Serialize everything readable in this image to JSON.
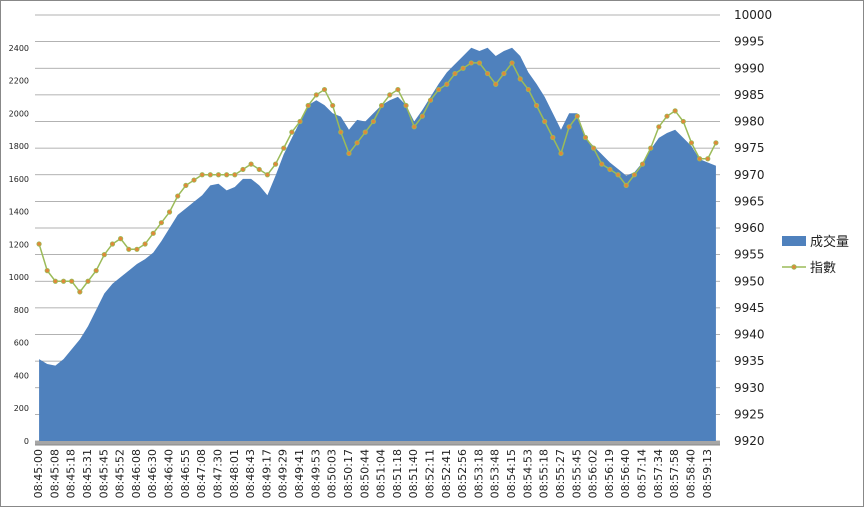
{
  "chart_data": {
    "type": "area-line",
    "grid": true,
    "legend": "right",
    "categories": [
      "08:45:00",
      null,
      "08:45:08",
      null,
      "08:45:18",
      null,
      "08:45:31",
      null,
      "08:45:45",
      null,
      "08:45:52",
      null,
      "08:46:08",
      null,
      "08:46:30",
      null,
      "08:46:40",
      null,
      "08:46:55",
      null,
      "08:47:08",
      null,
      "08:47:30",
      null,
      "08:48:01",
      null,
      "08:48:43",
      null,
      "08:49:17",
      null,
      "08:49:29",
      null,
      "08:49:41",
      null,
      "08:49:53",
      null,
      "08:50:03",
      null,
      "08:50:17",
      null,
      "08:50:44",
      null,
      "08:51:04",
      null,
      "08:51:18",
      null,
      "08:51:40",
      null,
      "08:52:11",
      null,
      "08:52:41",
      null,
      "08:52:56",
      null,
      "08:53:18",
      null,
      "08:53:48",
      null,
      "08:54:15",
      null,
      "08:54:53",
      null,
      "08:55:18",
      null,
      "08:55:27",
      null,
      "08:55:45",
      null,
      "08:56:02",
      null,
      "08:56:19",
      null,
      "08:56:40",
      null,
      "08:57:14",
      null,
      "08:57:34",
      null,
      "08:57:58",
      null,
      "08:58:40",
      null,
      "08:59:13",
      null
    ],
    "series": [
      {
        "name": "成交量",
        "color": "#4f81bd",
        "type": "area",
        "values": [
          500,
          470,
          460,
          500,
          560,
          620,
          700,
          800,
          900,
          960,
          1000,
          1040,
          1080,
          1110,
          1150,
          1220,
          1300,
          1380,
          1420,
          1460,
          1500,
          1560,
          1570,
          1530,
          1550,
          1600,
          1600,
          1560,
          1500,
          1620,
          1750,
          1850,
          1950,
          2050,
          2080,
          2050,
          2000,
          1980,
          1900,
          1960,
          1950,
          2000,
          2050,
          2080,
          2100,
          2050,
          1950,
          2020,
          2100,
          2180,
          2250,
          2300,
          2350,
          2400,
          2380,
          2400,
          2350,
          2380,
          2400,
          2350,
          2250,
          2180,
          2100,
          2000,
          1900,
          2000,
          2000,
          1850,
          1800,
          1750,
          1700,
          1660,
          1620,
          1640,
          1700,
          1780,
          1850,
          1880,
          1900,
          1850,
          1800,
          1720,
          1700,
          1680
        ]
      },
      {
        "name": "指數",
        "color": "#9bbb59",
        "marker_color": "#e0883a",
        "type": "line",
        "axis": "y2",
        "values": [
          9957,
          9952,
          9950,
          9950,
          9950,
          9948,
          9950,
          9952,
          9955,
          9957,
          9958,
          9956,
          9956,
          9957,
          9959,
          9961,
          9963,
          9966,
          9968,
          9969,
          9970,
          9970,
          9970,
          9970,
          9970,
          9971,
          9972,
          9971,
          9970,
          9972,
          9975,
          9978,
          9980,
          9983,
          9985,
          9986,
          9983,
          9978,
          9974,
          9976,
          9978,
          9980,
          9983,
          9985,
          9986,
          9983,
          9979,
          9981,
          9984,
          9986,
          9987,
          9989,
          9990,
          9991,
          9991,
          9989,
          9987,
          9989,
          9991,
          9988,
          9986,
          9983,
          9980,
          9977,
          9974,
          9979,
          9981,
          9977,
          9975,
          9972,
          9971,
          9970,
          9968,
          9970,
          9972,
          9975,
          9979,
          9981,
          9982,
          9980,
          9976,
          9973,
          9973,
          9976
        ]
      }
    ],
    "ylim": [
      0,
      2600
    ],
    "yticks": [
      0,
      200,
      400,
      600,
      800,
      1000,
      1200,
      1400,
      1600,
      1800,
      2000,
      2200,
      2400
    ],
    "y2lim": [
      9920,
      10000
    ],
    "y2ticks": [
      9920,
      9925,
      9930,
      9935,
      9940,
      9945,
      9950,
      9955,
      9960,
      9965,
      9970,
      9975,
      9980,
      9985,
      9990,
      9995,
      10000
    ]
  }
}
